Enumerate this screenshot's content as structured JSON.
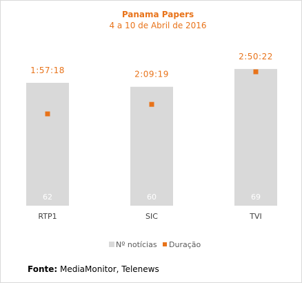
{
  "chart_data": {
    "type": "bar",
    "title": "Panama Papers",
    "subtitle": "4 a 10 de Abril de 2016",
    "categories": [
      "RTP1",
      "SIC",
      "TVI"
    ],
    "series": [
      {
        "name": "Nº notícias",
        "type": "bar",
        "color": "#d9d9d9",
        "values": [
          62,
          60,
          69
        ],
        "labels": [
          "62",
          "60",
          "69"
        ]
      },
      {
        "name": "Duração",
        "type": "marker",
        "color": "#e8731a",
        "values": [
          7038,
          7759,
          10222
        ],
        "labels": [
          "1:57:18",
          "2:09:19",
          "2:50:22"
        ]
      }
    ],
    "legend_position": "bottom",
    "grid": false
  },
  "source": {
    "label": "Fonte:",
    "text": " MediaMonitor, Telenews"
  }
}
